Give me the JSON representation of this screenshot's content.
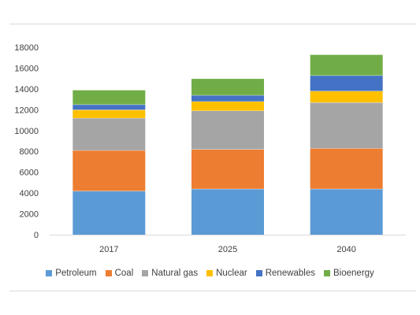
{
  "chart_data": {
    "type": "bar",
    "stacked": true,
    "title": "",
    "xlabel": "",
    "ylabel": "",
    "categories": [
      "2017",
      "2025",
      "2040"
    ],
    "ylim": [
      0,
      18000
    ],
    "yticks": [
      "0",
      "2000",
      "4000",
      "6000",
      "8000",
      "10000",
      "12000",
      "14000",
      "16000",
      "18000"
    ],
    "grid": false,
    "legend_position": "bottom",
    "series": [
      {
        "name": "Petroleum",
        "color": "#5b9bd5",
        "values": [
          4200,
          4400,
          4400
        ]
      },
      {
        "name": "Coal",
        "color": "#ed7d31",
        "values": [
          3900,
          3800,
          3900
        ]
      },
      {
        "name": "Natural gas",
        "color": "#a5a5a5",
        "values": [
          3100,
          3700,
          4400
        ]
      },
      {
        "name": "Nuclear",
        "color": "#ffc000",
        "values": [
          800,
          900,
          1100
        ]
      },
      {
        "name": "Renewables",
        "color": "#4472c4",
        "values": [
          500,
          600,
          1500
        ]
      },
      {
        "name": "Bioenergy",
        "color": "#70ad47",
        "values": [
          1400,
          1600,
          2000
        ]
      }
    ]
  }
}
